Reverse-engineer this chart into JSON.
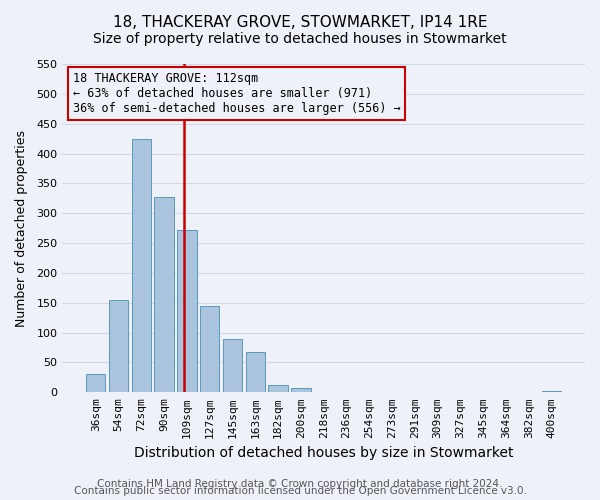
{
  "title": "18, THACKERAY GROVE, STOWMARKET, IP14 1RE",
  "subtitle": "Size of property relative to detached houses in Stowmarket",
  "xlabel": "Distribution of detached houses by size in Stowmarket",
  "ylabel": "Number of detached properties",
  "bar_labels": [
    "36sqm",
    "54sqm",
    "72sqm",
    "90sqm",
    "109sqm",
    "127sqm",
    "145sqm",
    "163sqm",
    "182sqm",
    "200sqm",
    "218sqm",
    "236sqm",
    "254sqm",
    "273sqm",
    "291sqm",
    "309sqm",
    "327sqm",
    "345sqm",
    "364sqm",
    "382sqm",
    "400sqm"
  ],
  "bar_values": [
    30,
    155,
    425,
    328,
    272,
    145,
    90,
    67,
    12,
    8,
    0,
    0,
    0,
    0,
    0,
    0,
    0,
    0,
    0,
    0,
    2
  ],
  "bar_color": "#aac4de",
  "bar_edge_color": "#5a9abf",
  "grid_color": "#d0d8e8",
  "background_color": "#eef2f8",
  "vline_x": 3.85,
  "vline_color": "#cc0000",
  "annotation_box_text": "18 THACKERAY GROVE: 112sqm\n← 63% of detached houses are smaller (971)\n36% of semi-detached houses are larger (556) →",
  "annotation_box_color": "#cc0000",
  "ylim": [
    0,
    550
  ],
  "yticks": [
    0,
    50,
    100,
    150,
    200,
    250,
    300,
    350,
    400,
    450,
    500,
    550
  ],
  "footer_line1": "Contains HM Land Registry data © Crown copyright and database right 2024.",
  "footer_line2": "Contains public sector information licensed under the Open Government Licence v3.0.",
  "title_fontsize": 11,
  "subtitle_fontsize": 10,
  "xlabel_fontsize": 10,
  "ylabel_fontsize": 9,
  "tick_fontsize": 8,
  "footer_fontsize": 7.5,
  "ann_fontsize": 8.5
}
